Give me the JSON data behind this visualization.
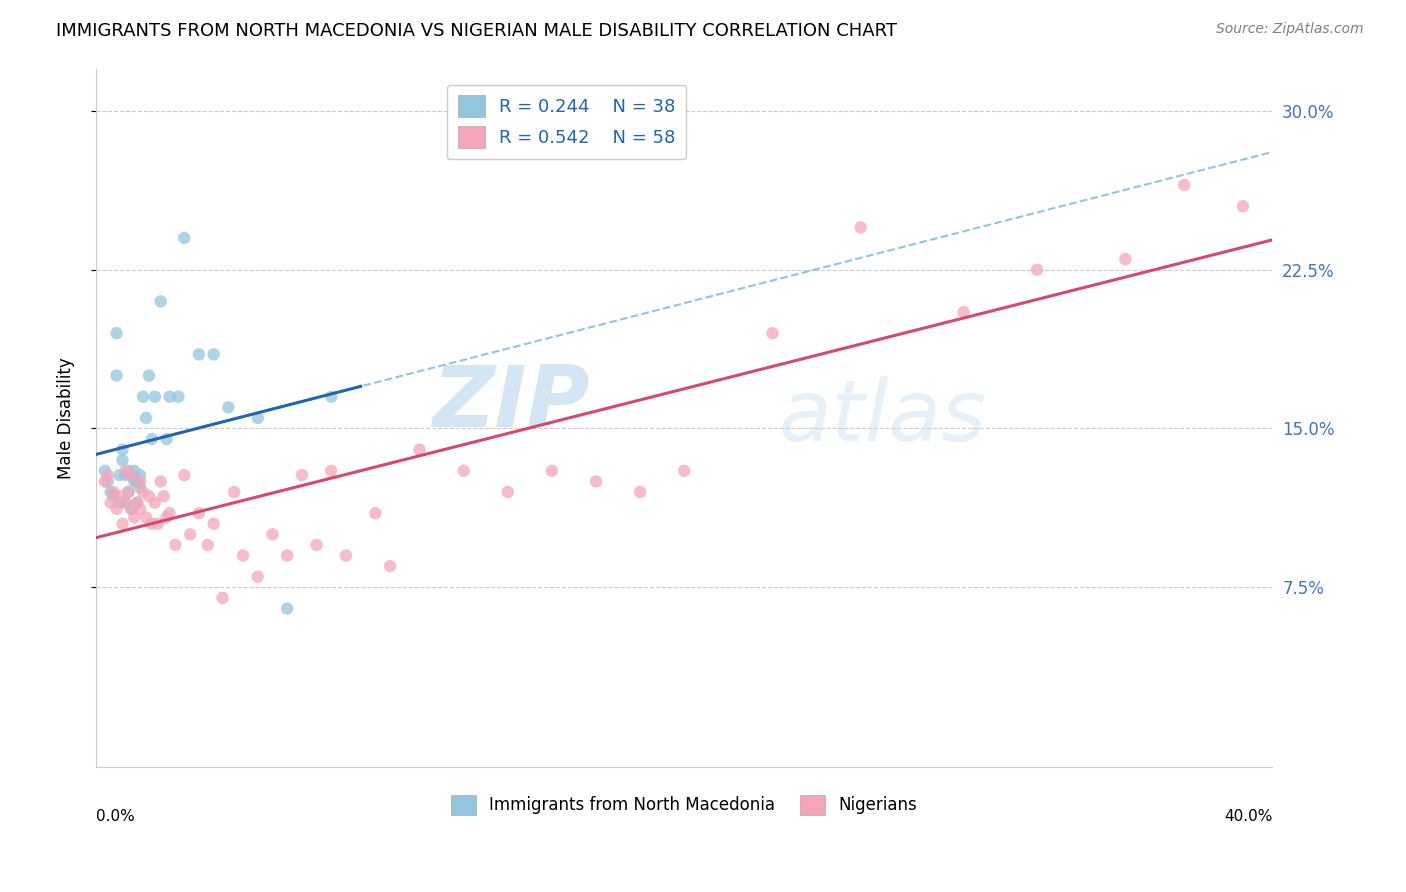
{
  "title": "IMMIGRANTS FROM NORTH MACEDONIA VS NIGERIAN MALE DISABILITY CORRELATION CHART",
  "source": "Source: ZipAtlas.com",
  "ylabel": "Male Disability",
  "y_ticks": [
    0.075,
    0.15,
    0.225,
    0.3
  ],
  "y_tick_labels": [
    "7.5%",
    "15.0%",
    "22.5%",
    "30.0%"
  ],
  "x_range": [
    0.0,
    0.4
  ],
  "y_range": [
    -0.01,
    0.32
  ],
  "blue_color": "#92c5de",
  "pink_color": "#f4a6b8",
  "blue_line_color": "#2166ac",
  "pink_line_color": "#d6496a",
  "dashed_line_color": "#92c5de",
  "r_blue": 0.244,
  "n_blue": 38,
  "r_pink": 0.542,
  "n_pink": 58,
  "blue_scatter_x": [
    0.003,
    0.004,
    0.005,
    0.006,
    0.007,
    0.007,
    0.008,
    0.008,
    0.009,
    0.009,
    0.01,
    0.01,
    0.011,
    0.011,
    0.012,
    0.012,
    0.013,
    0.013,
    0.014,
    0.014,
    0.015,
    0.015,
    0.016,
    0.017,
    0.018,
    0.019,
    0.02,
    0.022,
    0.024,
    0.025,
    0.028,
    0.03,
    0.035,
    0.04,
    0.045,
    0.055,
    0.065,
    0.08
  ],
  "blue_scatter_y": [
    0.13,
    0.125,
    0.12,
    0.118,
    0.175,
    0.195,
    0.115,
    0.128,
    0.135,
    0.14,
    0.128,
    0.115,
    0.13,
    0.12,
    0.128,
    0.112,
    0.13,
    0.125,
    0.115,
    0.125,
    0.128,
    0.122,
    0.165,
    0.155,
    0.175,
    0.145,
    0.165,
    0.21,
    0.145,
    0.165,
    0.165,
    0.24,
    0.185,
    0.185,
    0.16,
    0.155,
    0.065,
    0.165
  ],
  "pink_scatter_x": [
    0.003,
    0.004,
    0.005,
    0.006,
    0.007,
    0.008,
    0.009,
    0.01,
    0.01,
    0.011,
    0.012,
    0.012,
    0.013,
    0.014,
    0.015,
    0.015,
    0.016,
    0.017,
    0.018,
    0.019,
    0.02,
    0.021,
    0.022,
    0.023,
    0.024,
    0.025,
    0.027,
    0.03,
    0.032,
    0.035,
    0.038,
    0.04,
    0.043,
    0.047,
    0.05,
    0.055,
    0.06,
    0.065,
    0.07,
    0.075,
    0.08,
    0.085,
    0.095,
    0.1,
    0.11,
    0.125,
    0.14,
    0.155,
    0.17,
    0.185,
    0.2,
    0.23,
    0.26,
    0.295,
    0.32,
    0.35,
    0.37,
    0.39
  ],
  "pink_scatter_y": [
    0.125,
    0.128,
    0.115,
    0.12,
    0.112,
    0.118,
    0.105,
    0.13,
    0.115,
    0.12,
    0.128,
    0.112,
    0.108,
    0.115,
    0.125,
    0.112,
    0.12,
    0.108,
    0.118,
    0.105,
    0.115,
    0.105,
    0.125,
    0.118,
    0.108,
    0.11,
    0.095,
    0.128,
    0.1,
    0.11,
    0.095,
    0.105,
    0.07,
    0.12,
    0.09,
    0.08,
    0.1,
    0.09,
    0.128,
    0.095,
    0.13,
    0.09,
    0.11,
    0.085,
    0.14,
    0.13,
    0.12,
    0.13,
    0.125,
    0.12,
    0.13,
    0.195,
    0.245,
    0.205,
    0.225,
    0.23,
    0.265,
    0.255
  ],
  "watermark_zip": "ZIP",
  "watermark_atlas": "atlas",
  "legend_text_color": "#2166ac"
}
